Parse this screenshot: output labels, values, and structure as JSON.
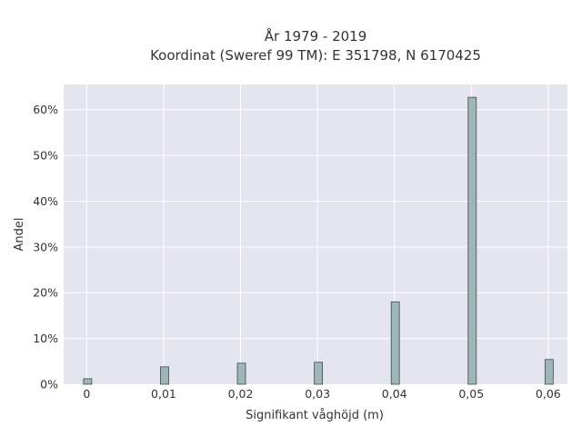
{
  "chart_data": {
    "type": "bar",
    "title_line1": "År 1979 - 2019",
    "title_line2": "Koordinat (Sweref 99 TM): E 351798, N 6170425",
    "xlabel": "Signifikant våghöjd (m)",
    "ylabel": "Andel",
    "x": [
      0,
      0.01,
      0.02,
      0.03,
      0.04,
      0.05,
      0.06
    ],
    "values": [
      1.2,
      3.8,
      4.6,
      4.8,
      18.0,
      62.7,
      5.4
    ],
    "xlim": [
      -0.003,
      0.0625
    ],
    "ylim": [
      0,
      65.5
    ],
    "x_ticks": [
      {
        "value": 0,
        "label": "0"
      },
      {
        "value": 0.01,
        "label": "0,01"
      },
      {
        "value": 0.02,
        "label": "0,02"
      },
      {
        "value": 0.03,
        "label": "0,03"
      },
      {
        "value": 0.04,
        "label": "0,04"
      },
      {
        "value": 0.05,
        "label": "0,05"
      },
      {
        "value": 0.06,
        "label": "0,06"
      }
    ],
    "y_ticks": [
      {
        "value": 0,
        "label": "0%"
      },
      {
        "value": 10,
        "label": "10%"
      },
      {
        "value": 20,
        "label": "20%"
      },
      {
        "value": 30,
        "label": "30%"
      },
      {
        "value": 40,
        "label": "40%"
      },
      {
        "value": 50,
        "label": "50%"
      },
      {
        "value": 60,
        "label": "60%"
      }
    ],
    "grid": true,
    "colors": {
      "bar_fill": "#9fb5b6",
      "bar_stroke": "#3d4a4b",
      "plot_bg": "#e5e5ef",
      "grid": "#ffffff"
    }
  }
}
